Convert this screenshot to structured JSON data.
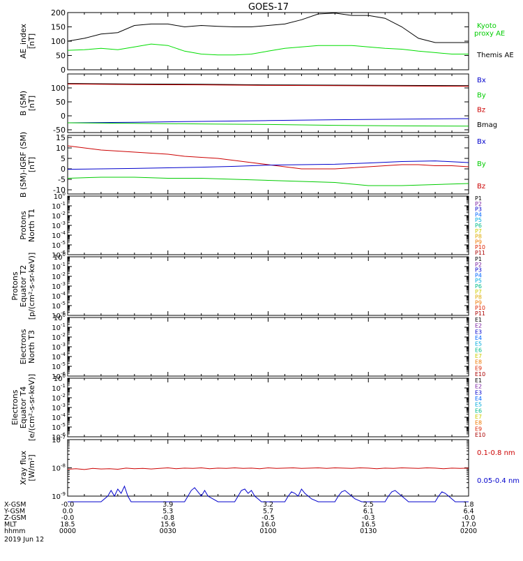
{
  "title": "GOES-17",
  "time_labels": [
    "0000",
    "0030",
    "0100",
    "0130",
    "0200"
  ],
  "date_label": "2019 Jun 12",
  "ephemeris": {
    "row_labels": [
      "X-GSM",
      "Y-GSM",
      "Z-GSM",
      "MLT",
      "hhmm"
    ],
    "columns": [
      [
        "-0.0",
        "0.0",
        "-0.0",
        "18.5",
        "0000"
      ],
      [
        "3.9",
        "5.3",
        "-0.8",
        "15.6",
        "0030"
      ],
      [
        "3.2",
        "5.7",
        "-0.5",
        "16.0",
        "0100"
      ],
      [
        "2.5",
        "6.1",
        "-0.3",
        "16.5",
        "0130"
      ],
      [
        "1.8",
        "6.4",
        "-0.0",
        "17.0",
        "0200"
      ]
    ]
  },
  "chart_data": [
    {
      "type": "line",
      "ylabel": "AE_index [nT]",
      "ylim": [
        0,
        200
      ],
      "scale": "linear",
      "yticks": [
        0,
        50,
        100,
        150,
        200
      ],
      "legend": [
        {
          "text": "Kyoto proxy AE",
          "color": "#00cc00"
        },
        {
          "text": "Themis AE",
          "color": "#000000"
        }
      ],
      "series": [
        {
          "name": "Themis AE",
          "color": "#000000",
          "x": [
            0,
            5,
            10,
            15,
            20,
            25,
            30,
            35,
            40,
            45,
            50,
            55,
            60,
            65,
            70,
            75,
            80,
            85,
            90,
            95,
            100,
            105,
            110,
            115,
            120
          ],
          "values": [
            100,
            110,
            125,
            130,
            155,
            160,
            160,
            150,
            155,
            152,
            150,
            150,
            155,
            160,
            175,
            195,
            198,
            190,
            190,
            180,
            150,
            110,
            95,
            95,
            95
          ]
        },
        {
          "name": "Kyoto proxy AE",
          "color": "#00dd00",
          "x": [
            0,
            5,
            10,
            15,
            20,
            25,
            30,
            35,
            40,
            45,
            50,
            55,
            60,
            65,
            70,
            75,
            80,
            85,
            90,
            95,
            100,
            105,
            110,
            115,
            120
          ],
          "values": [
            68,
            70,
            75,
            70,
            80,
            90,
            85,
            65,
            55,
            52,
            52,
            55,
            65,
            75,
            80,
            85,
            85,
            85,
            80,
            75,
            72,
            65,
            60,
            55,
            55
          ]
        }
      ]
    },
    {
      "type": "line",
      "ylabel": "B (SM) [nT]",
      "ylim": [
        -60,
        150
      ],
      "scale": "linear",
      "yticks": [
        -50,
        0,
        50,
        100
      ],
      "legend": [
        {
          "text": "Bx",
          "color": "#0000cc"
        },
        {
          "text": "By",
          "color": "#00cc00"
        },
        {
          "text": "Bz",
          "color": "#cc0000"
        },
        {
          "text": "Bmag",
          "color": "#000000"
        }
      ],
      "series": [
        {
          "name": "Bmag",
          "color": "#000000",
          "x": [
            0,
            20,
            40,
            60,
            80,
            100,
            120
          ],
          "values": [
            116,
            114,
            113,
            111,
            110,
            109,
            108
          ]
        },
        {
          "name": "Bz",
          "color": "#cc0000",
          "x": [
            0,
            20,
            40,
            60,
            80,
            100,
            120
          ],
          "values": [
            114,
            112,
            111,
            109,
            108,
            107,
            106
          ]
        },
        {
          "name": "Bx",
          "color": "#0000cc",
          "x": [
            0,
            20,
            40,
            60,
            80,
            100,
            120
          ],
          "values": [
            -25,
            -23,
            -20,
            -17,
            -14,
            -12,
            -10
          ]
        },
        {
          "name": "By",
          "color": "#00cc00",
          "x": [
            0,
            20,
            40,
            60,
            80,
            100,
            120
          ],
          "values": [
            -25,
            -27,
            -29,
            -31,
            -34,
            -36,
            -37
          ]
        }
      ]
    },
    {
      "type": "line",
      "ylabel": "B (SM)-IGRF (SM) [nT]",
      "ylim": [
        -12,
        16
      ],
      "scale": "linear",
      "yticks": [
        -10,
        -5,
        0,
        5,
        10,
        15
      ],
      "legend": [
        {
          "text": "Bx",
          "color": "#0000cc"
        },
        {
          "text": "By",
          "color": "#00cc00"
        },
        {
          "text": "Bz",
          "color": "#cc0000"
        }
      ],
      "series": [
        {
          "name": "Bz",
          "color": "#cc0000",
          "x": [
            0,
            5,
            10,
            15,
            20,
            25,
            30,
            35,
            40,
            45,
            50,
            55,
            60,
            65,
            70,
            75,
            80,
            85,
            90,
            95,
            100,
            105,
            110,
            115,
            120
          ],
          "values": [
            11,
            10,
            9,
            8.5,
            8,
            7.5,
            7,
            6,
            5.5,
            5,
            4,
            3,
            2,
            1,
            0,
            0,
            0,
            0.5,
            1,
            1.5,
            2,
            2,
            1.5,
            1.5,
            1
          ]
        },
        {
          "name": "Bx",
          "color": "#0000cc",
          "x": [
            0,
            10,
            20,
            30,
            40,
            50,
            60,
            70,
            80,
            90,
            100,
            110,
            120
          ],
          "values": [
            -0.2,
            0,
            0.2,
            0.5,
            0.8,
            1.2,
            1.8,
            2,
            2.2,
            2.8,
            3.5,
            3.8,
            3
          ]
        },
        {
          "name": "By",
          "color": "#00cc00",
          "x": [
            0,
            10,
            20,
            30,
            40,
            50,
            60,
            70,
            80,
            90,
            100,
            110,
            120
          ],
          "values": [
            -4.5,
            -4,
            -4,
            -4.5,
            -4.5,
            -5,
            -5.5,
            -6,
            -6.5,
            -8,
            -8,
            -7.5,
            -7
          ]
        }
      ]
    },
    {
      "type": "line",
      "ylabel": "Protons North T1",
      "scale": "log",
      "ylim_exp": [
        -6,
        0
      ],
      "tick_exponents": [
        0,
        -1,
        -2,
        -3,
        -4,
        -5,
        -6
      ],
      "legend": [
        {
          "text": "P1",
          "color": "#000000"
        },
        {
          "text": "P2",
          "color": "#7a1fa2"
        },
        {
          "text": "P3",
          "color": "#0000cc"
        },
        {
          "text": "P4",
          "color": "#0066ff"
        },
        {
          "text": "P5",
          "color": "#00aadd"
        },
        {
          "text": "P6",
          "color": "#00bb88"
        },
        {
          "text": "P7",
          "color": "#cccc00"
        },
        {
          "text": "P8",
          "color": "#ddaa00"
        },
        {
          "text": "P9",
          "color": "#ee7700"
        },
        {
          "text": "P10",
          "color": "#dd2200"
        },
        {
          "text": "P11",
          "color": "#aa0000"
        }
      ],
      "series": []
    },
    {
      "type": "line",
      "ylabel": "Protons Equator T2 [p/(cm²-s-sr-keV)]",
      "scale": "log",
      "ylim_exp": [
        -6,
        0
      ],
      "tick_exponents": [
        0,
        -1,
        -2,
        -3,
        -4,
        -5,
        -6
      ],
      "legend": [
        {
          "text": "P1",
          "color": "#000000"
        },
        {
          "text": "P2",
          "color": "#7a1fa2"
        },
        {
          "text": "P3",
          "color": "#0000cc"
        },
        {
          "text": "P4",
          "color": "#0066ff"
        },
        {
          "text": "P5",
          "color": "#00aadd"
        },
        {
          "text": "P6",
          "color": "#00bb88"
        },
        {
          "text": "P7",
          "color": "#cccc00"
        },
        {
          "text": "P8",
          "color": "#ddaa00"
        },
        {
          "text": "P9",
          "color": "#ee7700"
        },
        {
          "text": "P10",
          "color": "#dd2200"
        },
        {
          "text": "P11",
          "color": "#aa0000"
        }
      ],
      "series": []
    },
    {
      "type": "line",
      "ylabel": "Electrons North T3",
      "scale": "log",
      "ylim_exp": [
        -6,
        0
      ],
      "tick_exponents": [
        0,
        -1,
        -2,
        -3,
        -4,
        -5,
        -6
      ],
      "legend": [
        {
          "text": "E1",
          "color": "#000000"
        },
        {
          "text": "E2",
          "color": "#7a1fa2"
        },
        {
          "text": "E3",
          "color": "#0000cc"
        },
        {
          "text": "E4",
          "color": "#0066ff"
        },
        {
          "text": "E5",
          "color": "#00aadd"
        },
        {
          "text": "E6",
          "color": "#00bb88"
        },
        {
          "text": "E7",
          "color": "#cccc00"
        },
        {
          "text": "E8",
          "color": "#ee7700"
        },
        {
          "text": "E9",
          "color": "#dd2200"
        },
        {
          "text": "E10",
          "color": "#aa0000"
        }
      ],
      "series": []
    },
    {
      "type": "line",
      "ylabel": "Electrons Equator T4 [e/(cm²-s-sr-keV)]",
      "scale": "log",
      "ylim_exp": [
        -6,
        0
      ],
      "tick_exponents": [
        0,
        -1,
        -2,
        -3,
        -4,
        -5,
        -6
      ],
      "legend": [
        {
          "text": "E1",
          "color": "#000000"
        },
        {
          "text": "E2",
          "color": "#7a1fa2"
        },
        {
          "text": "E3",
          "color": "#0000cc"
        },
        {
          "text": "E4",
          "color": "#0066ff"
        },
        {
          "text": "E5",
          "color": "#00aadd"
        },
        {
          "text": "E6",
          "color": "#00bb88"
        },
        {
          "text": "E7",
          "color": "#cccc00"
        },
        {
          "text": "E8",
          "color": "#ee7700"
        },
        {
          "text": "E9",
          "color": "#dd2200"
        },
        {
          "text": "E10",
          "color": "#aa0000"
        }
      ],
      "series": []
    },
    {
      "type": "line",
      "ylabel": "Xray flux [W/m²]",
      "scale": "log",
      "ylim_exp": [
        -9,
        -7
      ],
      "tick_exponents": [
        -7,
        -8,
        -9
      ],
      "legend": [
        {
          "text": "0.1-0.8 nm",
          "color": "#cc0000"
        },
        {
          "text": "0.05-0.4 nm",
          "color": "#0000cc"
        }
      ],
      "series": [
        {
          "name": "0.1-0.8 nm",
          "color": "#cc0000",
          "x": [
            0,
            2.5,
            5,
            7.5,
            10,
            12.5,
            15,
            17.5,
            20,
            22.5,
            25,
            27.5,
            30,
            32.5,
            35,
            37.5,
            40,
            42.5,
            45,
            47.5,
            50,
            52.5,
            55,
            57.5,
            60,
            62.5,
            65,
            67.5,
            70,
            72.5,
            75,
            77.5,
            80,
            82.5,
            85,
            87.5,
            90,
            92.5,
            95,
            97.5,
            100,
            102.5,
            105,
            107.5,
            110,
            112.5,
            115,
            117.5,
            120
          ],
          "log_values": [
            -8.05,
            -8.03,
            -8.06,
            -8.02,
            -8.04,
            -8.03,
            -8.05,
            -8.01,
            -8.03,
            -8.02,
            -8.04,
            -8.02,
            -8.0,
            -8.03,
            -8.01,
            -8.02,
            -8.0,
            -8.03,
            -8.01,
            -8.02,
            -8.0,
            -8.02,
            -8.01,
            -8.03,
            -8.0,
            -8.02,
            -8.01,
            -8.0,
            -8.02,
            -8.01,
            -8.0,
            -8.02,
            -8.0,
            -8.01,
            -8.02,
            -8.0,
            -8.01,
            -8.03,
            -8.01,
            -8.02,
            -8.0,
            -8.01,
            -8.02,
            -8.0,
            -8.01,
            -8.03,
            -8.01,
            -8.02,
            -8.01
          ]
        },
        {
          "name": "0.05-0.4 nm",
          "color": "#0000cc",
          "x": [
            0,
            10,
            12,
            13,
            14,
            15,
            16,
            17,
            18,
            19,
            20,
            21,
            22,
            24,
            30,
            35,
            36,
            37,
            38,
            39,
            40,
            41,
            42,
            45,
            50,
            51,
            52,
            53,
            54,
            55,
            56,
            57,
            58,
            60,
            65,
            66,
            67,
            68,
            69,
            70,
            71,
            72,
            73,
            75,
            80,
            81,
            82,
            83,
            84,
            85,
            86,
            88,
            90,
            95,
            96,
            97,
            98,
            99,
            100,
            101,
            102,
            104,
            110,
            111,
            112,
            113,
            114,
            115,
            116,
            120
          ],
          "log_values": [
            -9.2,
            -9.2,
            -9.0,
            -8.8,
            -9.0,
            -8.75,
            -8.9,
            -8.65,
            -9.0,
            -9.2,
            -9.2,
            -9.2,
            -9.2,
            -9.2,
            -9.2,
            -9.2,
            -9.0,
            -8.8,
            -8.7,
            -8.85,
            -9.0,
            -8.8,
            -9.0,
            -9.2,
            -9.2,
            -9.0,
            -8.8,
            -8.75,
            -8.9,
            -8.8,
            -9.0,
            -9.1,
            -9.2,
            -9.2,
            -9.2,
            -9.0,
            -8.85,
            -8.9,
            -9.0,
            -8.75,
            -8.9,
            -9.0,
            -9.1,
            -9.2,
            -9.2,
            -9.0,
            -8.85,
            -8.8,
            -8.9,
            -9.0,
            -9.1,
            -9.2,
            -9.2,
            -9.2,
            -9.0,
            -8.85,
            -8.8,
            -8.9,
            -9.0,
            -9.1,
            -9.2,
            -9.2,
            -9.2,
            -9.0,
            -8.85,
            -8.9,
            -9.0,
            -9.1,
            -9.2,
            -9.2
          ]
        }
      ]
    }
  ]
}
